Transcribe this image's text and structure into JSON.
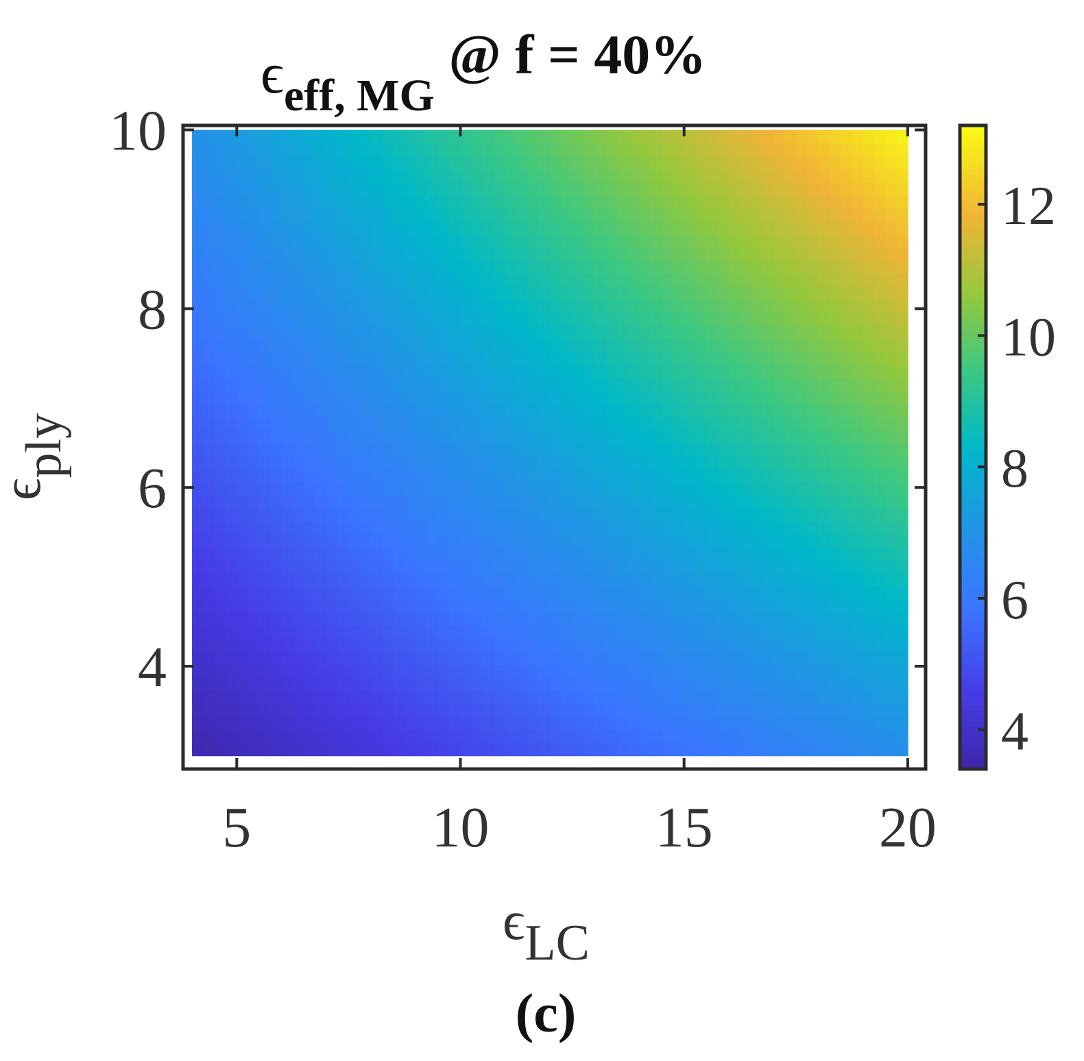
{
  "chart_data": {
    "type": "heatmap",
    "title": {
      "symbol": "ϵ",
      "subscript": "eff, MG",
      "suffix": " @ f = 40%"
    },
    "xlabel": {
      "symbol": "ϵ",
      "subscript": "LC"
    },
    "ylabel": {
      "symbol": "ϵ",
      "subscript": "ply"
    },
    "xlim": [
      3.8,
      20.4
    ],
    "ylim": [
      2.85,
      10.05
    ],
    "data_extent": {
      "x": [
        4,
        20
      ],
      "y": [
        3,
        10
      ]
    },
    "xticks": [
      5,
      10,
      15,
      20
    ],
    "xtick_labels": [
      "5",
      "10",
      "15",
      "20"
    ],
    "yticks": [
      4,
      6,
      8,
      10
    ],
    "ytick_labels": [
      "4",
      "6",
      "8",
      "10"
    ],
    "colorbar": {
      "range": [
        3.4,
        13.2
      ],
      "ticks": [
        4,
        6,
        8,
        10,
        12
      ],
      "tick_labels": [
        "4",
        "6",
        "8",
        "10",
        "12"
      ],
      "colormap": "parula"
    },
    "z_corners": {
      "x4_y3": 3.5,
      "x20_y3": 6.8,
      "x4_y10": 6.9,
      "x20_y10": 13.1
    },
    "panel_label": "(c)"
  }
}
